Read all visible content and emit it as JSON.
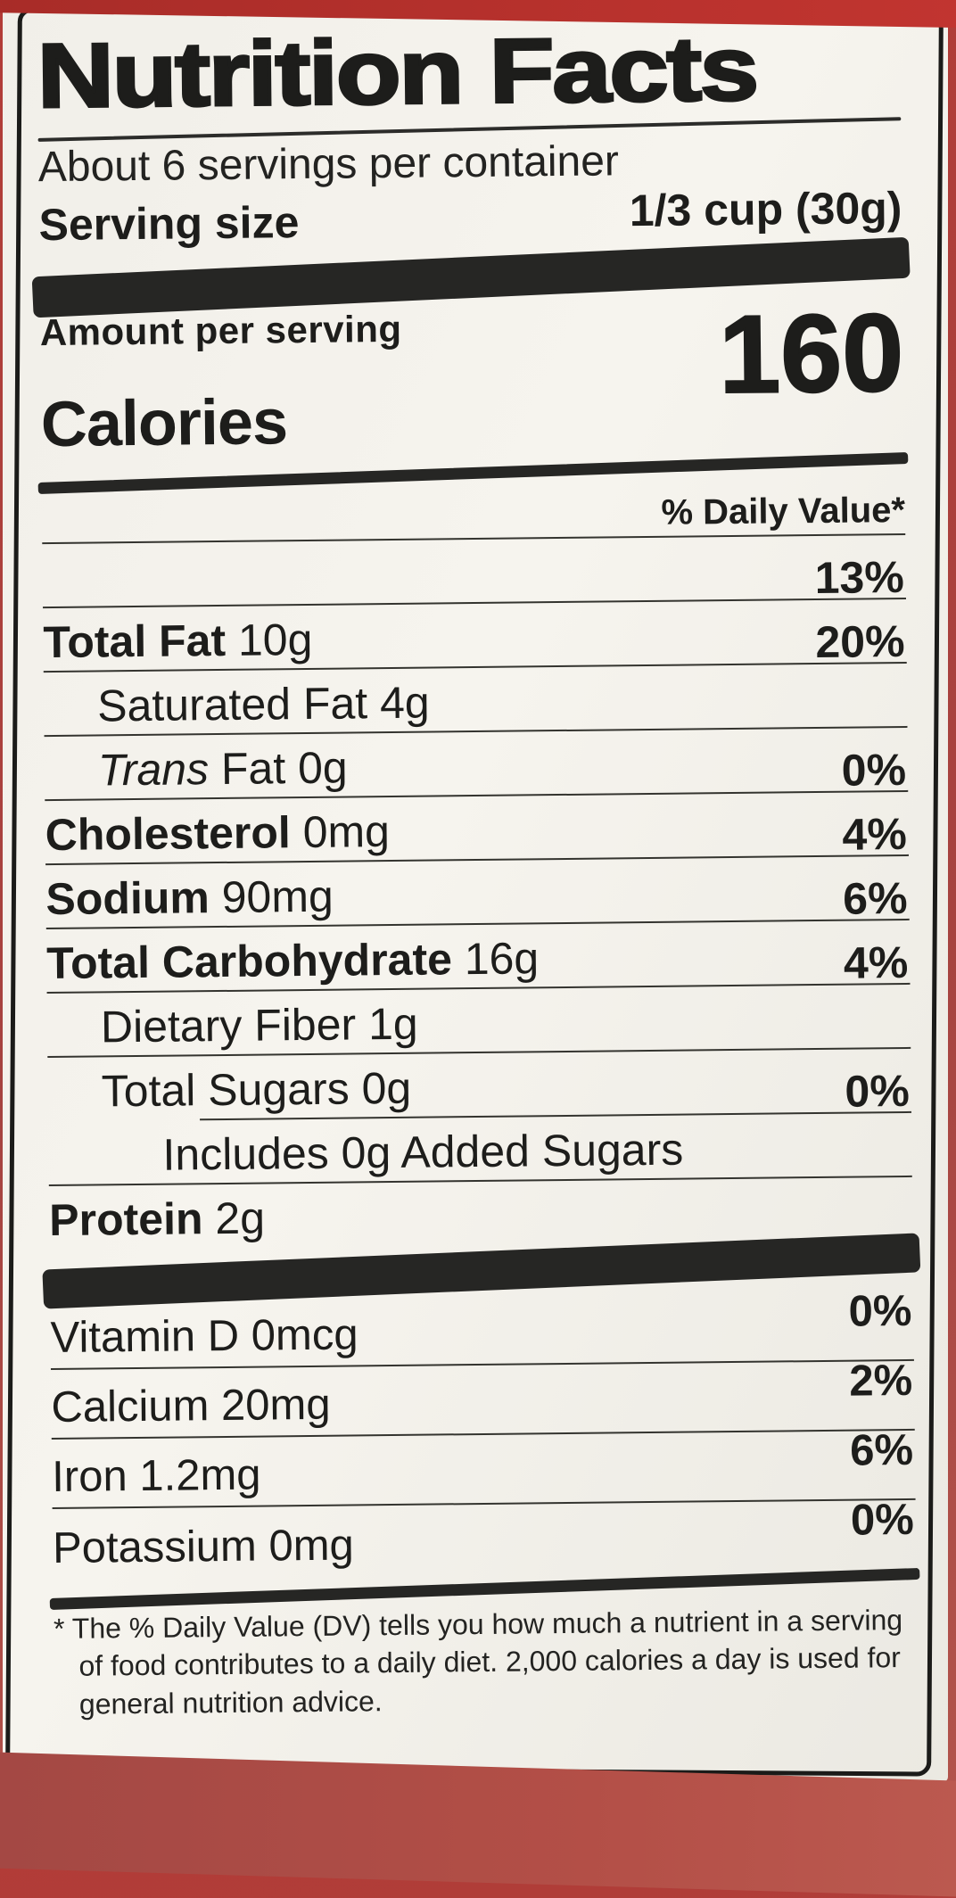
{
  "package": {
    "top_color": "#c23530",
    "bottom_color": "#b34f47",
    "label_background": "#f2f0ea"
  },
  "label": {
    "title": "Nutrition Facts",
    "servings_per_container": "About 6 servings per container",
    "serving_size_label": "Serving size",
    "serving_size_value": "1/3 cup (30g)",
    "amount_per_serving": "Amount per serving",
    "calories_label": "Calories",
    "calories_value": "160",
    "daily_value_header": "% Daily Value*",
    "rows": [
      {
        "b": "",
        "i": "",
        "t": "",
        "dv": "13%"
      },
      {
        "b": "Total Fat",
        "i": "",
        "t": " 10g",
        "dv": "20%"
      },
      {
        "b": "",
        "i": "",
        "t": "Saturated Fat 4g",
        "dv": ""
      },
      {
        "b": "",
        "i": "Trans",
        "t": " Fat 0g",
        "dv": "0%"
      },
      {
        "b": "Cholesterol",
        "i": "",
        "t": " 0mg",
        "dv": "4%"
      },
      {
        "b": "Sodium",
        "i": "",
        "t": " 90mg",
        "dv": "6%"
      },
      {
        "b": "Total Carbohydrate",
        "i": "",
        "t": " 16g",
        "dv": "4%"
      },
      {
        "b": "",
        "i": "",
        "t": "Dietary Fiber 1g",
        "dv": ""
      },
      {
        "b": "",
        "i": "",
        "t": "Total Sugars 0g",
        "dv": "0%"
      },
      {
        "b": "",
        "i": "",
        "t": "Includes 0g Added Sugars",
        "dv": ""
      },
      {
        "b": "Protein",
        "i": "",
        "t": " 2g",
        "dv": ""
      }
    ],
    "vitamins": [
      {
        "t": "Vitamin D 0mcg",
        "dv": "0%"
      },
      {
        "t": "Calcium 20mg",
        "dv": "2%"
      },
      {
        "t": "Iron 1.2mg",
        "dv": "6%"
      },
      {
        "t": "Potassium 0mg",
        "dv": "0%"
      }
    ],
    "footnote_marker": "*",
    "footnote": " The % Daily Value (DV) tells you how much a nutrient in a serving of food contributes to a daily diet. 2,000 calories a day is used for general nutrition advice."
  }
}
